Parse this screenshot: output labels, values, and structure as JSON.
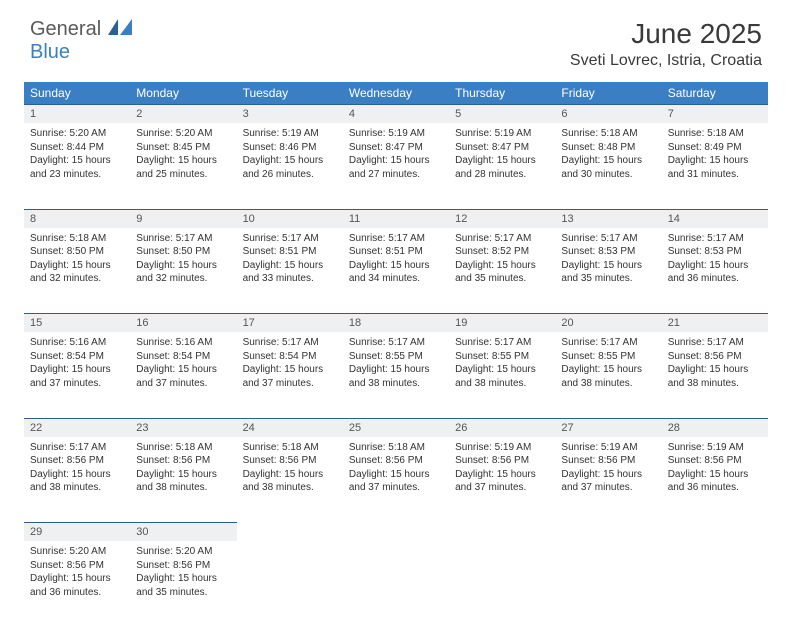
{
  "logo": {
    "line1": "General",
    "line2": "Blue"
  },
  "title": "June 2025",
  "location": "Sveti Lovrec, Istria, Croatia",
  "colors": {
    "header_bg": "#3a7fc4",
    "daynum_bg": "#eef0f2",
    "rule": "#2b5f8f",
    "logo_gray": "#5a5a5a",
    "logo_blue": "#3a7fc4"
  },
  "day_headers": [
    "Sunday",
    "Monday",
    "Tuesday",
    "Wednesday",
    "Thursday",
    "Friday",
    "Saturday"
  ],
  "weeks": [
    [
      {
        "n": "1",
        "sr": "5:20 AM",
        "ss": "8:44 PM",
        "dl": "15 hours and 23 minutes."
      },
      {
        "n": "2",
        "sr": "5:20 AM",
        "ss": "8:45 PM",
        "dl": "15 hours and 25 minutes."
      },
      {
        "n": "3",
        "sr": "5:19 AM",
        "ss": "8:46 PM",
        "dl": "15 hours and 26 minutes."
      },
      {
        "n": "4",
        "sr": "5:19 AM",
        "ss": "8:47 PM",
        "dl": "15 hours and 27 minutes."
      },
      {
        "n": "5",
        "sr": "5:19 AM",
        "ss": "8:47 PM",
        "dl": "15 hours and 28 minutes."
      },
      {
        "n": "6",
        "sr": "5:18 AM",
        "ss": "8:48 PM",
        "dl": "15 hours and 30 minutes."
      },
      {
        "n": "7",
        "sr": "5:18 AM",
        "ss": "8:49 PM",
        "dl": "15 hours and 31 minutes."
      }
    ],
    [
      {
        "n": "8",
        "sr": "5:18 AM",
        "ss": "8:50 PM",
        "dl": "15 hours and 32 minutes."
      },
      {
        "n": "9",
        "sr": "5:17 AM",
        "ss": "8:50 PM",
        "dl": "15 hours and 32 minutes."
      },
      {
        "n": "10",
        "sr": "5:17 AM",
        "ss": "8:51 PM",
        "dl": "15 hours and 33 minutes."
      },
      {
        "n": "11",
        "sr": "5:17 AM",
        "ss": "8:51 PM",
        "dl": "15 hours and 34 minutes."
      },
      {
        "n": "12",
        "sr": "5:17 AM",
        "ss": "8:52 PM",
        "dl": "15 hours and 35 minutes."
      },
      {
        "n": "13",
        "sr": "5:17 AM",
        "ss": "8:53 PM",
        "dl": "15 hours and 35 minutes."
      },
      {
        "n": "14",
        "sr": "5:17 AM",
        "ss": "8:53 PM",
        "dl": "15 hours and 36 minutes."
      }
    ],
    [
      {
        "n": "15",
        "sr": "5:16 AM",
        "ss": "8:54 PM",
        "dl": "15 hours and 37 minutes."
      },
      {
        "n": "16",
        "sr": "5:16 AM",
        "ss": "8:54 PM",
        "dl": "15 hours and 37 minutes."
      },
      {
        "n": "17",
        "sr": "5:17 AM",
        "ss": "8:54 PM",
        "dl": "15 hours and 37 minutes."
      },
      {
        "n": "18",
        "sr": "5:17 AM",
        "ss": "8:55 PM",
        "dl": "15 hours and 38 minutes."
      },
      {
        "n": "19",
        "sr": "5:17 AM",
        "ss": "8:55 PM",
        "dl": "15 hours and 38 minutes."
      },
      {
        "n": "20",
        "sr": "5:17 AM",
        "ss": "8:55 PM",
        "dl": "15 hours and 38 minutes."
      },
      {
        "n": "21",
        "sr": "5:17 AM",
        "ss": "8:56 PM",
        "dl": "15 hours and 38 minutes."
      }
    ],
    [
      {
        "n": "22",
        "sr": "5:17 AM",
        "ss": "8:56 PM",
        "dl": "15 hours and 38 minutes."
      },
      {
        "n": "23",
        "sr": "5:18 AM",
        "ss": "8:56 PM",
        "dl": "15 hours and 38 minutes."
      },
      {
        "n": "24",
        "sr": "5:18 AM",
        "ss": "8:56 PM",
        "dl": "15 hours and 38 minutes."
      },
      {
        "n": "25",
        "sr": "5:18 AM",
        "ss": "8:56 PM",
        "dl": "15 hours and 37 minutes."
      },
      {
        "n": "26",
        "sr": "5:19 AM",
        "ss": "8:56 PM",
        "dl": "15 hours and 37 minutes."
      },
      {
        "n": "27",
        "sr": "5:19 AM",
        "ss": "8:56 PM",
        "dl": "15 hours and 37 minutes."
      },
      {
        "n": "28",
        "sr": "5:19 AM",
        "ss": "8:56 PM",
        "dl": "15 hours and 36 minutes."
      }
    ],
    [
      {
        "n": "29",
        "sr": "5:20 AM",
        "ss": "8:56 PM",
        "dl": "15 hours and 36 minutes."
      },
      {
        "n": "30",
        "sr": "5:20 AM",
        "ss": "8:56 PM",
        "dl": "15 hours and 35 minutes."
      },
      null,
      null,
      null,
      null,
      null
    ]
  ],
  "labels": {
    "sunrise": "Sunrise:",
    "sunset": "Sunset:",
    "daylight": "Daylight:"
  }
}
